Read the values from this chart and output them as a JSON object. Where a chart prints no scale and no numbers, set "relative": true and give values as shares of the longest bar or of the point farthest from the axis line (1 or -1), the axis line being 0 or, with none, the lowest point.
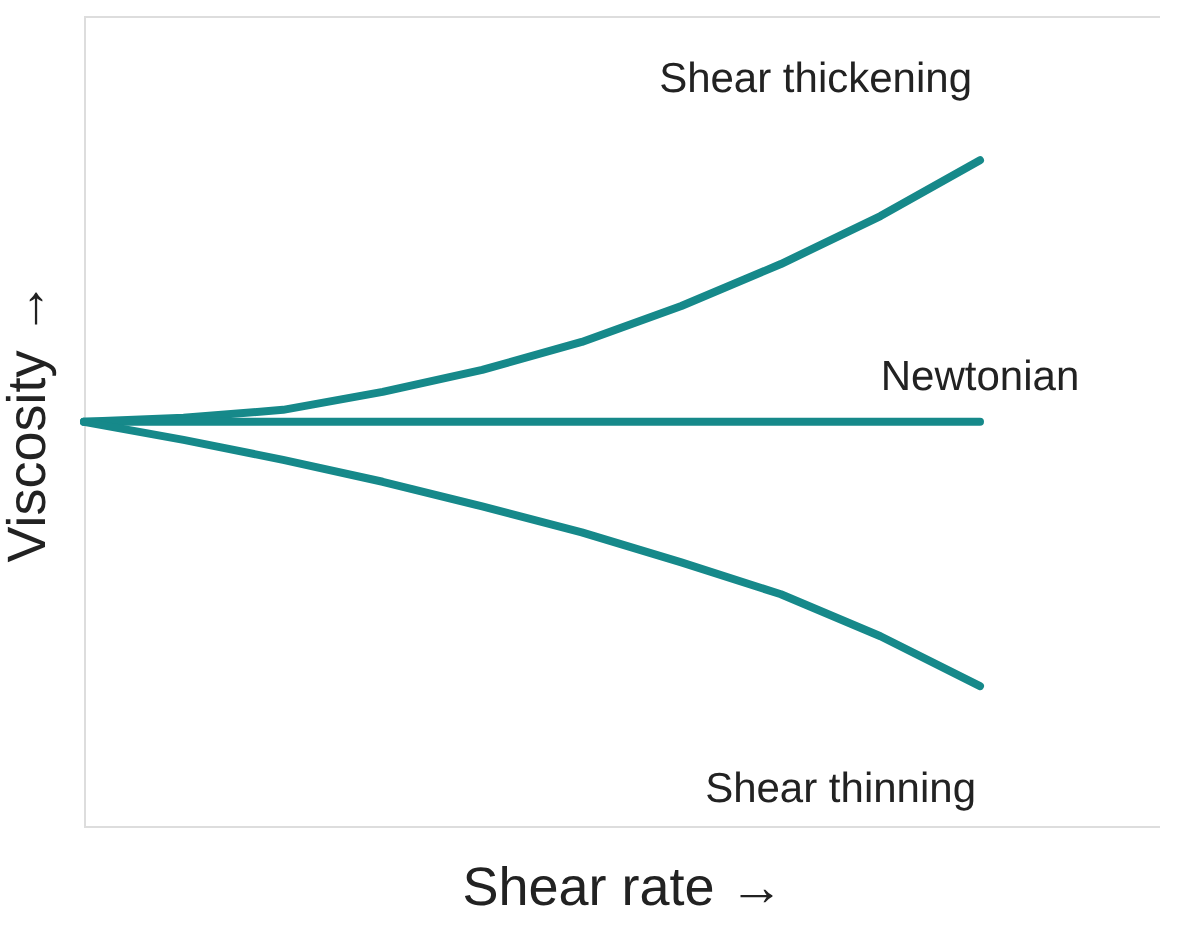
{
  "chart_data": {
    "type": "line",
    "relative": true,
    "xlabel": "Shear rate →",
    "ylabel": "Viscosity →",
    "categories": [
      null,
      null,
      null,
      null,
      null,
      null,
      null,
      null,
      null,
      null
    ],
    "series": [
      {
        "name": "Shear thickening",
        "color": "#16898a",
        "values": [
          0.607,
          0.613,
          0.625,
          0.652,
          0.685,
          0.727,
          0.781,
          0.844,
          0.916,
          1
        ]
      },
      {
        "name": "Newtonian",
        "color": "#16898a",
        "values": [
          0.607,
          0.607,
          0.607,
          0.607,
          0.607,
          0.607,
          0.607,
          0.607,
          0.607,
          0.607
        ]
      },
      {
        "name": "Shear thinning",
        "color": "#16898a",
        "values": [
          0.607,
          0.58,
          0.55,
          0.517,
          0.48,
          0.441,
          0.396,
          0.348,
          0.285,
          0.21
        ]
      }
    ]
  }
}
